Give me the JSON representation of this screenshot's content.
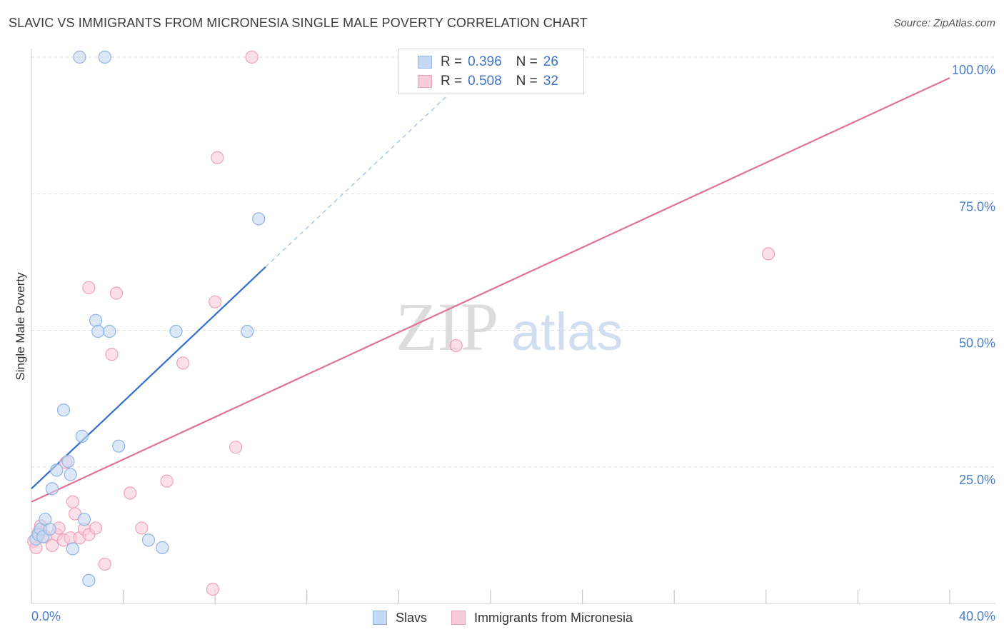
{
  "header": {
    "title": "SLAVIC VS IMMIGRANTS FROM MICRONESIA SINGLE MALE POVERTY CORRELATION CHART",
    "source": "Source: ZipAtlas.com"
  },
  "watermark": {
    "zip": "ZIP",
    "atlas": "atlas"
  },
  "legend": [
    {
      "r_label": "R =",
      "r_value": "0.396",
      "n_label": "N =",
      "n_value": "26"
    },
    {
      "r_label": "R =",
      "r_value": "0.508",
      "n_label": "N =",
      "n_value": "32"
    }
  ],
  "colors": {
    "slavs_fill": "#c5d9f4",
    "slavs_stroke": "#8fb3e3",
    "slavs_line": "#2f6fcc",
    "micro_fill": "#f8cbd8",
    "micro_stroke": "#eea3bb",
    "micro_line": "#e0729a",
    "tick_text": "#4a7ec8",
    "grid": "#dcdcdc"
  },
  "chart_data": {
    "type": "scatter",
    "title": "SLAVIC VS IMMIGRANTS FROM MICRONESIA SINGLE MALE POVERTY CORRELATION CHART",
    "xlabel": "",
    "ylabel": "Single Male Poverty",
    "xlim": [
      0,
      40
    ],
    "ylim": [
      0,
      100
    ],
    "x_tick_labels": [
      "0.0%",
      "40.0%"
    ],
    "y_ticks": [
      25,
      50,
      75,
      100
    ],
    "y_tick_labels": [
      "25.0%",
      "50.0%",
      "75.0%",
      "100.0%"
    ],
    "grid": true,
    "legend_position": "bottom",
    "series": [
      {
        "name": "Slavs",
        "r": 0.396,
        "n": 26,
        "points": [
          [
            0.2,
            11.8
          ],
          [
            0.3,
            12.6
          ],
          [
            0.4,
            13.6
          ],
          [
            0.5,
            12.2
          ],
          [
            0.6,
            15.4
          ],
          [
            0.8,
            13.6
          ],
          [
            0.9,
            21.0
          ],
          [
            1.1,
            24.4
          ],
          [
            1.4,
            35.4
          ],
          [
            1.6,
            26.0
          ],
          [
            1.7,
            23.6
          ],
          [
            1.8,
            10.0
          ],
          [
            2.2,
            30.6
          ],
          [
            2.3,
            15.4
          ],
          [
            2.5,
            4.2
          ],
          [
            2.8,
            51.8
          ],
          [
            2.9,
            49.8
          ],
          [
            3.4,
            49.8
          ],
          [
            3.8,
            28.8
          ],
          [
            5.1,
            11.6
          ],
          [
            5.7,
            10.2
          ],
          [
            6.3,
            49.8
          ],
          [
            9.4,
            49.8
          ],
          [
            9.9,
            70.4
          ],
          [
            2.1,
            100.0
          ],
          [
            3.2,
            100.0
          ]
        ],
        "trend": {
          "x": [
            0.0,
            10.2
          ],
          "y": [
            21.0,
            61.6
          ]
        },
        "trend_extension": {
          "x": [
            10.2,
            18.5
          ],
          "y": [
            61.6,
            94.5
          ]
        }
      },
      {
        "name": "Immigrants from Micronesia",
        "r": 0.508,
        "n": 32,
        "points": [
          [
            0.1,
            11.4
          ],
          [
            0.2,
            10.2
          ],
          [
            0.4,
            14.2
          ],
          [
            0.6,
            12.2
          ],
          [
            0.9,
            10.6
          ],
          [
            1.1,
            12.6
          ],
          [
            1.2,
            13.8
          ],
          [
            1.4,
            11.6
          ],
          [
            1.5,
            25.8
          ],
          [
            1.7,
            12.0
          ],
          [
            1.8,
            18.6
          ],
          [
            1.9,
            16.4
          ],
          [
            2.1,
            12.0
          ],
          [
            2.3,
            13.6
          ],
          [
            2.5,
            12.6
          ],
          [
            2.8,
            13.8
          ],
          [
            3.2,
            7.2
          ],
          [
            3.5,
            45.6
          ],
          [
            3.7,
            56.8
          ],
          [
            4.3,
            20.2
          ],
          [
            4.8,
            13.8
          ],
          [
            5.9,
            22.4
          ],
          [
            6.6,
            44.0
          ],
          [
            7.9,
            2.6
          ],
          [
            8.0,
            55.2
          ],
          [
            8.1,
            81.6
          ],
          [
            8.9,
            28.6
          ],
          [
            9.6,
            100.0
          ],
          [
            2.5,
            57.8
          ],
          [
            18.5,
            47.2
          ],
          [
            32.1,
            64.0
          ],
          [
            0.3,
            13.0
          ]
        ],
        "trend": {
          "x": [
            0.0,
            40.0
          ],
          "y": [
            18.6,
            96.2
          ]
        }
      }
    ]
  }
}
